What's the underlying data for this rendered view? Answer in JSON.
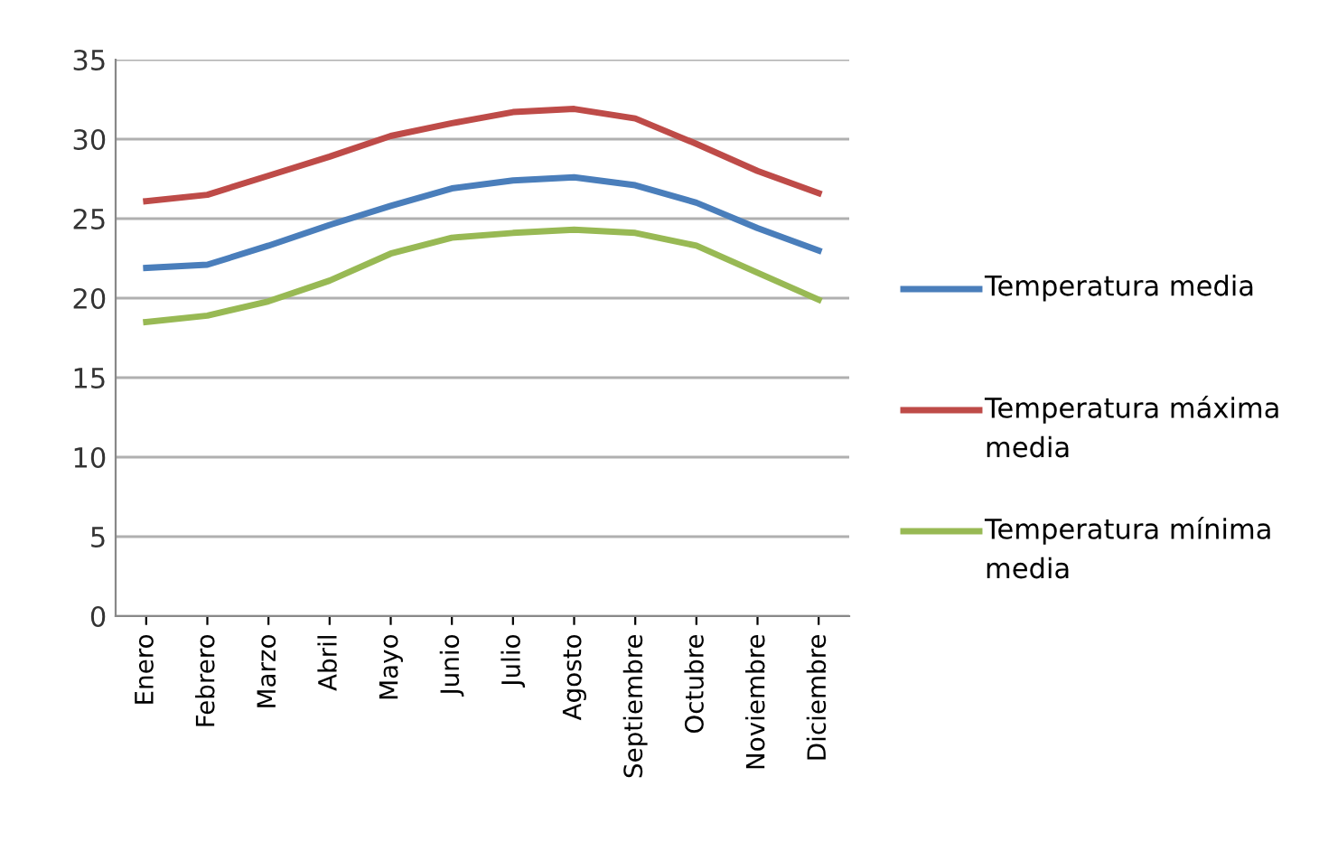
{
  "chart_data": {
    "type": "line",
    "categories": [
      "Enero",
      "Febrero",
      "Marzo",
      "Abril",
      "Mayo",
      "Junio",
      "Julio",
      "Agosto",
      "Septiembre",
      "Octubre",
      "Noviembre",
      "Diciembre"
    ],
    "series": [
      {
        "name": "Temperatura media",
        "color": "#4a7ebb",
        "values": [
          21.9,
          22.1,
          23.3,
          24.6,
          25.8,
          26.9,
          27.4,
          27.6,
          27.1,
          26.0,
          24.4,
          23.0
        ]
      },
      {
        "name": "Temperatura máxima media",
        "color": "#be4b48",
        "values": [
          26.1,
          26.5,
          27.7,
          28.9,
          30.2,
          31.0,
          31.7,
          31.9,
          31.3,
          29.7,
          28.0,
          26.6
        ]
      },
      {
        "name": "Temperatura mínima media",
        "color": "#98b954",
        "values": [
          18.5,
          18.9,
          19.8,
          21.1,
          22.8,
          23.8,
          24.1,
          24.3,
          24.1,
          23.3,
          21.6,
          19.9
        ]
      }
    ],
    "ylim": [
      0,
      35
    ],
    "yticks": [
      0,
      5,
      10,
      15,
      20,
      25,
      30,
      35
    ],
    "grid": "y",
    "legend": "right",
    "marker": "none",
    "line_style": "solid"
  }
}
